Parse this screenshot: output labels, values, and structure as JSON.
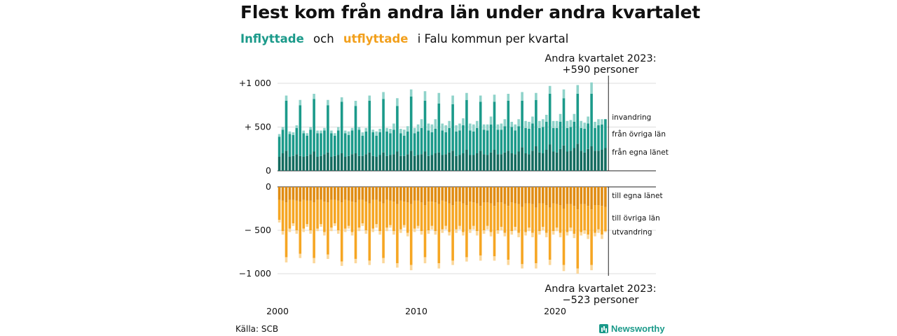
{
  "title": "Flest kom från andra län under andra kvartalet",
  "subtitle": {
    "part1": "Inflyttade",
    "part2": "och",
    "part3": "utflyttade",
    "part4": "i Falu kommun per kvartal"
  },
  "annotations": {
    "top_line1": "Andra kvartalet 2023:",
    "top_line2": "+590 personer",
    "bottom_line1": "Andra kvartalet 2023:",
    "bottom_line2": "−523 personer"
  },
  "source": "Källa: SCB",
  "brand": "Newsworthy",
  "colors": {
    "in_egna": "#136b5f",
    "in_ovriga": "#1b9a8a",
    "in_invandring": "#8fd3ca",
    "out_egna": "#e08c12",
    "out_ovriga": "#f6a623",
    "out_utvandring": "#fbd79a"
  },
  "chart_data": {
    "type": "bar",
    "stacked": true,
    "x_start": "2000 Q1",
    "x_end": "2023 Q2",
    "frequency": "quarterly",
    "x_tick_labels": [
      "2000",
      "2010",
      "2020"
    ],
    "panels": [
      {
        "name": "Inflyttade",
        "ylim": [
          0,
          1000
        ],
        "y_tick_labels": [
          "0",
          "+ 500",
          "+1 000"
        ],
        "series_labels": [
          "från egna länet",
          "från övriga län",
          "invandring"
        ],
        "series": [
          {
            "name": "från egna länet",
            "values": [
              160,
              200,
              230,
              160,
              170,
              190,
              170,
              160,
              170,
              190,
              220,
              160,
              170,
              190,
              210,
              160,
              170,
              180,
              200,
              160,
              170,
              190,
              200,
              170,
              170,
              190,
              210,
              170,
              160,
              180,
              210,
              170,
              180,
              190,
              220,
              170,
              170,
              190,
              230,
              170,
              180,
              190,
              220,
              170,
              180,
              200,
              210,
              180,
              190,
              210,
              230,
              170,
              180,
              200,
              240,
              180,
              180,
              200,
              230,
              190,
              180,
              210,
              240,
              190,
              190,
              210,
              230,
              200,
              190,
              220,
              270,
              200,
              190,
              230,
              280,
              210,
              200,
              240,
              300,
              220,
              210,
              250,
              290,
              220,
              230,
              260,
              310,
              230,
              210,
              250,
              280,
              230,
              230,
              240,
              260
            ]
          },
          {
            "name": "från övriga län",
            "values": [
              230,
              270,
              570,
              260,
              240,
              300,
              580,
              270,
              230,
              280,
              600,
              270,
              260,
              270,
              540,
              270,
              230,
              280,
              590,
              270,
              240,
              270,
              540,
              300,
              230,
              260,
              590,
              270,
              240,
              260,
              610,
              280,
              250,
              280,
              520,
              260,
              230,
              260,
              620,
              260,
              270,
              300,
              580,
              290,
              260,
              280,
              560,
              280,
              250,
              280,
              530,
              280,
              280,
              320,
              570,
              280,
              270,
              290,
              560,
              280,
              280,
              320,
              550,
              280,
              280,
              300,
              570,
              300,
              270,
              290,
              530,
              290,
              290,
              310,
              530,
              280,
              300,
              320,
              580,
              270,
              280,
              310,
              540,
              270,
              270,
              300,
              570,
              260,
              270,
              290,
              600,
              260,
              290,
              290,
              330
            ]
          },
          {
            "name": "invandring",
            "values": [
              30,
              30,
              60,
              30,
              30,
              30,
              60,
              30,
              30,
              30,
              60,
              30,
              30,
              30,
              60,
              30,
              30,
              40,
              50,
              30,
              40,
              30,
              60,
              30,
              40,
              40,
              60,
              30,
              50,
              40,
              80,
              40,
              50,
              70,
              90,
              50,
              70,
              60,
              80,
              60,
              80,
              100,
              110,
              80,
              90,
              110,
              120,
              80,
              80,
              80,
              100,
              70,
              80,
              80,
              80,
              80,
              80,
              80,
              70,
              60,
              70,
              90,
              80,
              60,
              70,
              80,
              80,
              60,
              70,
              80,
              100,
              80,
              80,
              80,
              80,
              80,
              90,
              80,
              90,
              80,
              80,
              90,
              100,
              80,
              80,
              90,
              100,
              80,
              70,
              80,
              130,
              70,
              70,
              60,
              0
            ]
          }
        ]
      },
      {
        "name": "Utflyttade",
        "ylim": [
          -1000,
          0
        ],
        "y_tick_labels": [
          "0",
          "− 500",
          "−1 000"
        ],
        "series_labels": [
          "till egna länet",
          "till övriga län",
          "utvandring"
        ],
        "series": [
          {
            "name": "till egna länet",
            "values": [
              -150,
              -160,
              -180,
              -150,
              -150,
              -160,
              -170,
              -150,
              -160,
              -160,
              -180,
              -150,
              -150,
              -170,
              -180,
              -150,
              -150,
              -160,
              -180,
              -150,
              -160,
              -170,
              -180,
              -150,
              -150,
              -170,
              -190,
              -150,
              -150,
              -170,
              -190,
              -150,
              -160,
              -170,
              -200,
              -160,
              -170,
              -180,
              -200,
              -160,
              -160,
              -180,
              -210,
              -170,
              -170,
              -180,
              -200,
              -160,
              -170,
              -190,
              -210,
              -170,
              -170,
              -190,
              -210,
              -170,
              -180,
              -190,
              -220,
              -180,
              -180,
              -190,
              -220,
              -180,
              -180,
              -200,
              -220,
              -180,
              -190,
              -200,
              -230,
              -190,
              -190,
              -200,
              -240,
              -190,
              -190,
              -210,
              -240,
              -190,
              -200,
              -210,
              -250,
              -200,
              -200,
              -220,
              -260,
              -200,
              -200,
              -220,
              -260,
              -210,
              -210,
              -220,
              -230
            ]
          },
          {
            "name": "till övriga län",
            "values": [
              -230,
              -350,
              -630,
              -330,
              -270,
              -340,
              -600,
              -330,
              -270,
              -340,
              -640,
              -330,
              -280,
              -350,
              -600,
              -320,
              -270,
              -340,
              -680,
              -330,
              -290,
              -350,
              -650,
              -320,
              -270,
              -330,
              -660,
              -330,
              -280,
              -340,
              -630,
              -320,
              -280,
              -340,
              -680,
              -330,
              -270,
              -350,
              -700,
              -320,
              -290,
              -330,
              -600,
              -330,
              -280,
              -330,
              -680,
              -330,
              -280,
              -330,
              -640,
              -320,
              -280,
              -330,
              -600,
              -320,
              -270,
              -320,
              -570,
              -320,
              -270,
              -330,
              -580,
              -320,
              -280,
              -330,
              -620,
              -330,
              -270,
              -330,
              -660,
              -330,
              -280,
              -330,
              -640,
              -320,
              -270,
              -320,
              -600,
              -320,
              -270,
              -320,
              -650,
              -320,
              -270,
              -320,
              -680,
              -320,
              -300,
              -330,
              -640,
              -320,
              -280,
              -330,
              -280
            ]
          },
          {
            "name": "utvandring",
            "values": [
              -30,
              -40,
              -60,
              -40,
              -30,
              -40,
              -50,
              -40,
              -30,
              -40,
              -60,
              -30,
              -30,
              -40,
              -50,
              -40,
              -30,
              -40,
              -50,
              -40,
              -30,
              -40,
              -50,
              -40,
              -30,
              -40,
              -50,
              -40,
              -40,
              -40,
              -60,
              -40,
              -30,
              -40,
              -50,
              -40,
              -30,
              -40,
              -60,
              -40,
              -30,
              -40,
              -70,
              -40,
              -40,
              -40,
              -60,
              -40,
              -40,
              -40,
              -50,
              -40,
              -40,
              -40,
              -50,
              -40,
              -40,
              -50,
              -60,
              -40,
              -40,
              -50,
              -50,
              -40,
              -40,
              -40,
              -60,
              -40,
              -40,
              -50,
              -50,
              -40,
              -40,
              -50,
              -60,
              -40,
              -40,
              -50,
              -60,
              -40,
              -40,
              -50,
              -70,
              -40,
              -40,
              -50,
              -60,
              -40,
              -40,
              -50,
              -60,
              -40,
              -40,
              -50,
              -13
            ]
          }
        ]
      }
    ]
  }
}
